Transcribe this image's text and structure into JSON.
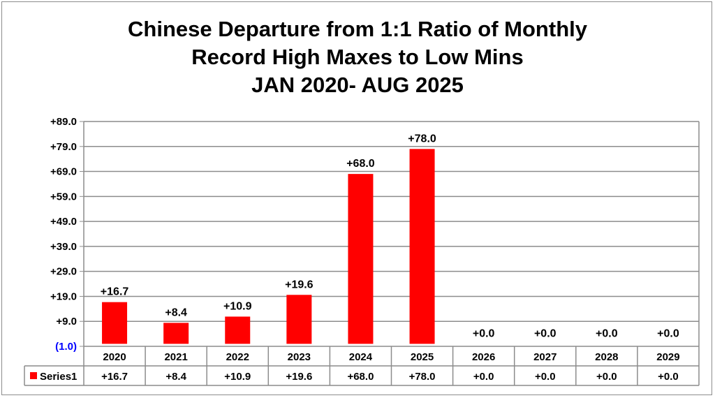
{
  "chart_data": {
    "type": "bar",
    "title_lines": [
      "Chinese Departure from 1:1 Ratio of Monthly",
      "Record High Maxes to Low Mins",
      "JAN 2020- AUG 2025"
    ],
    "categories": [
      "2020",
      "2021",
      "2022",
      "2023",
      "2024",
      "2025",
      "2026",
      "2027",
      "2028",
      "2029"
    ],
    "series": [
      {
        "name": "Series1",
        "color": "#ff0000",
        "values": [
          16.7,
          8.4,
          10.9,
          19.6,
          68.0,
          78.0,
          0.0,
          0.0,
          0.0,
          0.0
        ],
        "labels": [
          "+16.7",
          "+8.4",
          "+10.9",
          "+19.6",
          "+68.0",
          "+78.0",
          "+0.0",
          "+0.0",
          "+0.0",
          "+0.0"
        ]
      }
    ],
    "yticks": [
      -1,
      9,
      19,
      29,
      39,
      49,
      59,
      69,
      79,
      89
    ],
    "ytick_labels": [
      "(1.0)",
      "+9.0",
      "+19.0",
      "+29.0",
      "+39.0",
      "+49.0",
      "+59.0",
      "+69.0",
      "+79.0",
      "+89.0"
    ],
    "negative_tick_color": "#0000ff",
    "ylim": [
      -1,
      89
    ],
    "grid": true,
    "legend": "data-table",
    "data_table": true
  }
}
